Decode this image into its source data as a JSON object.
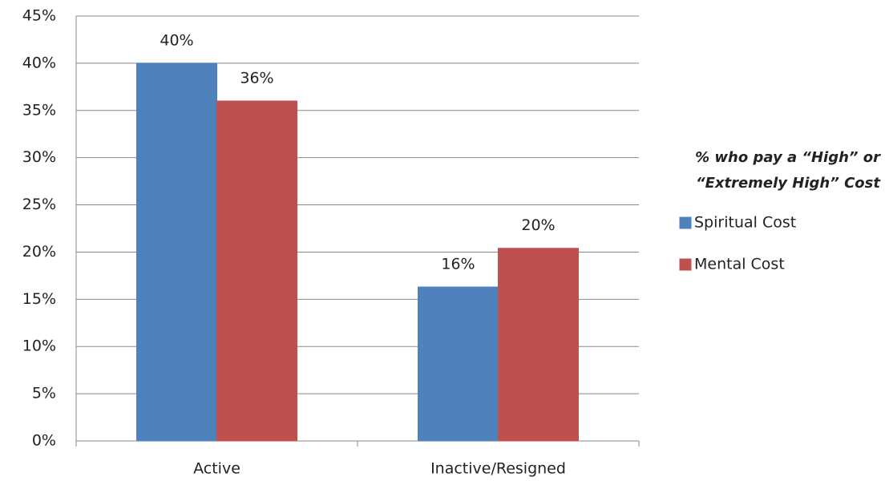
{
  "chart_data": {
    "type": "bar",
    "categories": [
      "Active",
      "Inactive/Resigned"
    ],
    "series": [
      {
        "name": "Spiritual Cost",
        "color": "#4f81bd",
        "values": [
          40,
          16.3
        ],
        "value_labels": [
          "40%",
          "16%"
        ]
      },
      {
        "name": "Mental Cost",
        "color": "#c0504d",
        "values": [
          36,
          20.4
        ],
        "value_labels": [
          "36%",
          "20%"
        ]
      }
    ],
    "ylim": [
      0,
      45
    ],
    "yticks": [
      {
        "value": 0,
        "label": "0%"
      },
      {
        "value": 5,
        "label": "5%"
      },
      {
        "value": 10,
        "label": "10%"
      },
      {
        "value": 15,
        "label": "15%"
      },
      {
        "value": 20,
        "label": "20%"
      },
      {
        "value": 25,
        "label": "25%"
      },
      {
        "value": 30,
        "label": "30%"
      },
      {
        "value": 35,
        "label": "35%"
      },
      {
        "value": 40,
        "label": "40%"
      },
      {
        "value": 45,
        "label": "45%"
      }
    ],
    "grid": true,
    "legend_title": [
      "% who pay a “High” or",
      "“Extremely High” Cost"
    ],
    "legend_position": "right"
  }
}
